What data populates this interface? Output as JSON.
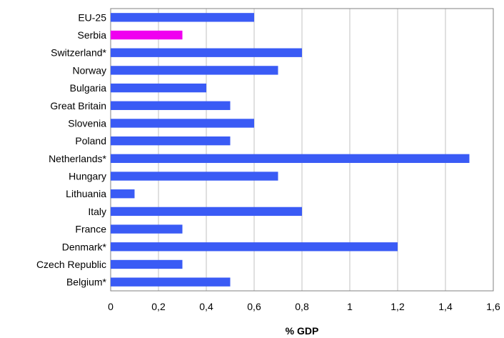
{
  "chart_data": {
    "type": "bar",
    "orientation": "horizontal",
    "categories": [
      "EU-25",
      "Serbia",
      "Switzerland*",
      "Norway",
      "Bulgaria",
      "Great Britain",
      "Slovenia",
      "Poland",
      "Netherlands*",
      "Hungary",
      "Lithuania",
      "Italy",
      "France",
      "Denmark*",
      "Czech Republic",
      "Belgium*"
    ],
    "values": [
      0.6,
      0.3,
      0.8,
      0.7,
      0.4,
      0.5,
      0.6,
      0.5,
      1.5,
      0.7,
      0.1,
      0.8,
      0.3,
      1.2,
      0.3,
      0.5
    ],
    "colors": {
      "default": "#3a5bf5",
      "highlight": "#f000f0",
      "highlight_category": "Serbia",
      "grid": "#c0c0c0",
      "frame": "#808080"
    },
    "xlabel": "% GDP",
    "ylabel": "",
    "xlim": [
      0,
      1.6
    ],
    "xticks": [
      0,
      0.2,
      0.4,
      0.6,
      0.8,
      1.0,
      1.2,
      1.4,
      1.6
    ],
    "xtick_labels": [
      "0",
      "0,2",
      "0,4",
      "0,6",
      "0,8",
      "1",
      "1,2",
      "1,4",
      "1,6"
    ],
    "grid": "vertical",
    "legend": "none"
  }
}
